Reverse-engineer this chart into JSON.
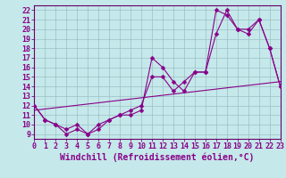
{
  "xlabel": "Windchill (Refroidissement éolien,°C)",
  "background_color": "#c5e8ea",
  "grid_color": "#9bbfc5",
  "line_color": "#880088",
  "xlim": [
    0,
    23
  ],
  "ylim": [
    8.5,
    22.5
  ],
  "yticks": [
    9,
    10,
    11,
    12,
    13,
    14,
    15,
    16,
    17,
    18,
    19,
    20,
    21,
    22
  ],
  "xticks": [
    0,
    1,
    2,
    3,
    4,
    5,
    6,
    7,
    8,
    9,
    10,
    11,
    12,
    13,
    14,
    15,
    16,
    17,
    18,
    19,
    20,
    21,
    22,
    23
  ],
  "line1_x": [
    0,
    1,
    2,
    3,
    4,
    5,
    6,
    7,
    8,
    9,
    10,
    11,
    12,
    13,
    14,
    15,
    16,
    17,
    18,
    19,
    20,
    21,
    22,
    23
  ],
  "line1_y": [
    12.0,
    10.5,
    10.0,
    9.0,
    9.5,
    9.0,
    9.5,
    10.5,
    11.0,
    11.0,
    11.5,
    17.0,
    16.0,
    14.5,
    13.5,
    15.5,
    15.5,
    22.0,
    21.5,
    20.0,
    19.5,
    21.0,
    18.0,
    14.0
  ],
  "line2_x": [
    0,
    1,
    2,
    3,
    4,
    5,
    6,
    7,
    8,
    9,
    10,
    11,
    12,
    13,
    14,
    15,
    16,
    17,
    18,
    19,
    20,
    21,
    22,
    23
  ],
  "line2_y": [
    12.0,
    10.5,
    10.0,
    9.5,
    10.0,
    9.0,
    10.0,
    10.5,
    11.0,
    11.5,
    12.0,
    15.0,
    15.0,
    13.5,
    14.5,
    15.5,
    15.5,
    19.5,
    22.0,
    20.0,
    20.0,
    21.0,
    18.0,
    14.0
  ],
  "line3_x": [
    0,
    23
  ],
  "line3_y": [
    11.5,
    14.5
  ],
  "tick_fontsize": 6,
  "xlabel_fontsize": 7,
  "marker_size": 2.5,
  "marker": "D"
}
